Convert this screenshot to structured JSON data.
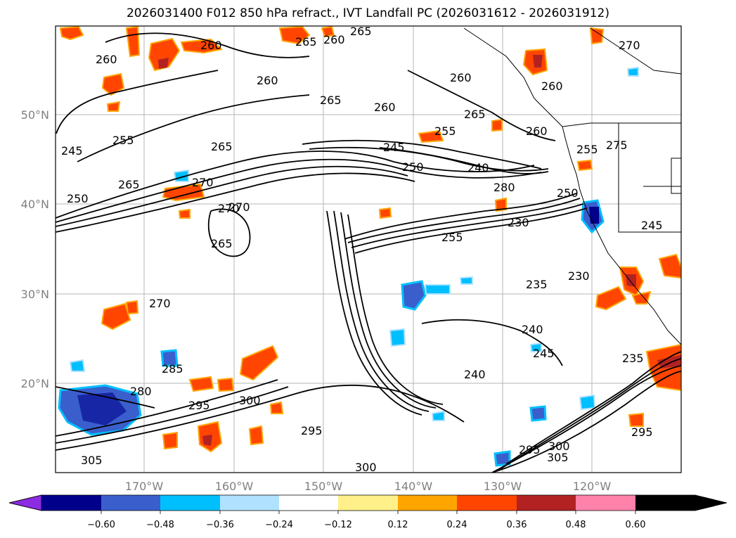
{
  "title": "2026031400 F012 850 hPa refract., IVT Landfall PC (2026031612 - 2026031912)",
  "map": {
    "lat_ticks": [
      "50°N",
      "40°N",
      "30°N",
      "20°N"
    ],
    "lon_ticks": [
      "170°W",
      "160°W",
      "150°W",
      "140°W",
      "130°W",
      "120°W"
    ],
    "contour_labels": [
      "265",
      "260",
      "260",
      "265",
      "260",
      "270",
      "260",
      "265",
      "260",
      "260",
      "265",
      "245",
      "255",
      "260",
      "255",
      "245",
      "250",
      "240",
      "260",
      "255",
      "265",
      "250",
      "265",
      "270",
      "280",
      "270",
      "275",
      "245",
      "265",
      "255",
      "250",
      "270",
      "230",
      "235",
      "230",
      "270",
      "240",
      "245",
      "235",
      "285",
      "280",
      "295",
      "300",
      "240",
      "295",
      "305",
      "300",
      "305",
      "295",
      "295",
      "300"
    ]
  },
  "colorbar": {
    "colors": [
      "#8b2be2",
      "#00008b",
      "#3a5fcd",
      "#00bfff",
      "#b0e2ff",
      "#ffffff",
      "#fff08a",
      "#ffa500",
      "#ff4500",
      "#b22222",
      "#ff82ab"
    ],
    "labels": [
      "−0.60",
      "−0.48",
      "−0.36",
      "−0.24",
      "−0.12",
      "0.12",
      "0.24",
      "0.36",
      "0.48",
      "0.60"
    ]
  }
}
